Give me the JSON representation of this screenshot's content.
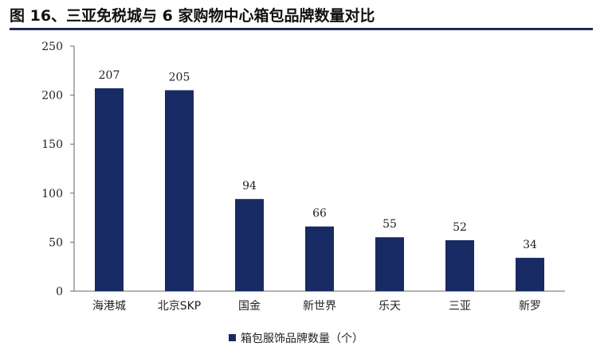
{
  "figure": {
    "title": "图 16、三亚免税城与 6 家购物中心箱包品牌数量对比"
  },
  "chart_data": {
    "type": "bar",
    "categories": [
      "海港城",
      "北京SKP",
      "国金",
      "新世界",
      "乐天",
      "三亚",
      "新罗"
    ],
    "series": [
      {
        "name": "箱包服饰品牌数量（个）",
        "values": [
          207,
          205,
          94,
          66,
          55,
          52,
          34
        ]
      }
    ],
    "ylim": [
      0,
      250
    ],
    "yticks": [
      0,
      50,
      100,
      150,
      200,
      250
    ],
    "legend_position": "bottom-center",
    "grid": false,
    "bar_color": "#172A63"
  }
}
